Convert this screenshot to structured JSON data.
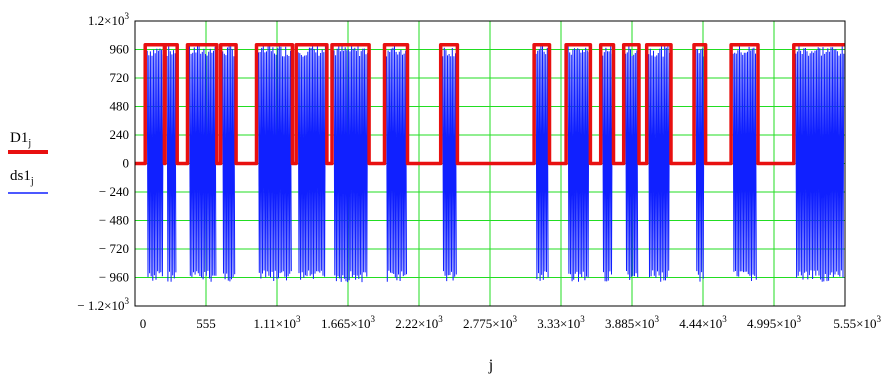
{
  "chart_data": {
    "type": "line",
    "xlabel": "j",
    "ylabel": "",
    "xlim": [
      0,
      5550
    ],
    "ylim": [
      -1200,
      1200
    ],
    "x_ticks": [
      {
        "value": 0,
        "label": "0"
      },
      {
        "value": 555,
        "label": "555"
      },
      {
        "value": 1110,
        "label": "1.11×10",
        "exp": "3"
      },
      {
        "value": 1665,
        "label": "1.665×10",
        "exp": "3"
      },
      {
        "value": 2220,
        "label": "2.22×10",
        "exp": "3"
      },
      {
        "value": 2775,
        "label": "2.775×10",
        "exp": "3"
      },
      {
        "value": 3330,
        "label": "3.33×10",
        "exp": "3"
      },
      {
        "value": 3885,
        "label": "3.885×10",
        "exp": "3"
      },
      {
        "value": 4440,
        "label": "4.44×10",
        "exp": "3"
      },
      {
        "value": 4995,
        "label": "4.995×10",
        "exp": "3"
      },
      {
        "value": 5550,
        "label": "5.55×10",
        "exp": "3"
      }
    ],
    "y_ticks": [
      {
        "value": 1200,
        "label": "1.2×10",
        "exp": "3"
      },
      {
        "value": 960,
        "label": "960"
      },
      {
        "value": 720,
        "label": "720"
      },
      {
        "value": 480,
        "label": "480"
      },
      {
        "value": 240,
        "label": "240"
      },
      {
        "value": 0,
        "label": "0"
      },
      {
        "value": -240,
        "label": "− 240"
      },
      {
        "value": -480,
        "label": "− 480"
      },
      {
        "value": -720,
        "label": "− 720"
      },
      {
        "value": -960,
        "label": "− 960"
      },
      {
        "value": -1200,
        "label": "− 1.2×10",
        "exp": "3"
      }
    ],
    "grid": true,
    "series": [
      {
        "name": "D1",
        "name_sub": "j",
        "color": "#e81010",
        "style": "step",
        "low": 0,
        "high": 1000,
        "pulses": [
          [
            80,
            230
          ],
          [
            235,
            330
          ],
          [
            410,
            640
          ],
          [
            670,
            790
          ],
          [
            950,
            1230
          ],
          [
            1260,
            1500
          ],
          [
            1540,
            1830
          ],
          [
            1950,
            2130
          ],
          [
            2390,
            2520
          ],
          [
            3120,
            3240
          ],
          [
            3370,
            3560
          ],
          [
            3640,
            3740
          ],
          [
            3820,
            3940
          ],
          [
            4000,
            4190
          ],
          [
            4370,
            4460
          ],
          [
            4660,
            4870
          ],
          [
            5150,
            5550
          ]
        ]
      },
      {
        "name": "ds1",
        "name_sub": "j",
        "color": "#1020ff",
        "style": "dense-oscillation",
        "amplitude": 1000,
        "active_within_pulses_of": "D1"
      }
    ]
  }
}
